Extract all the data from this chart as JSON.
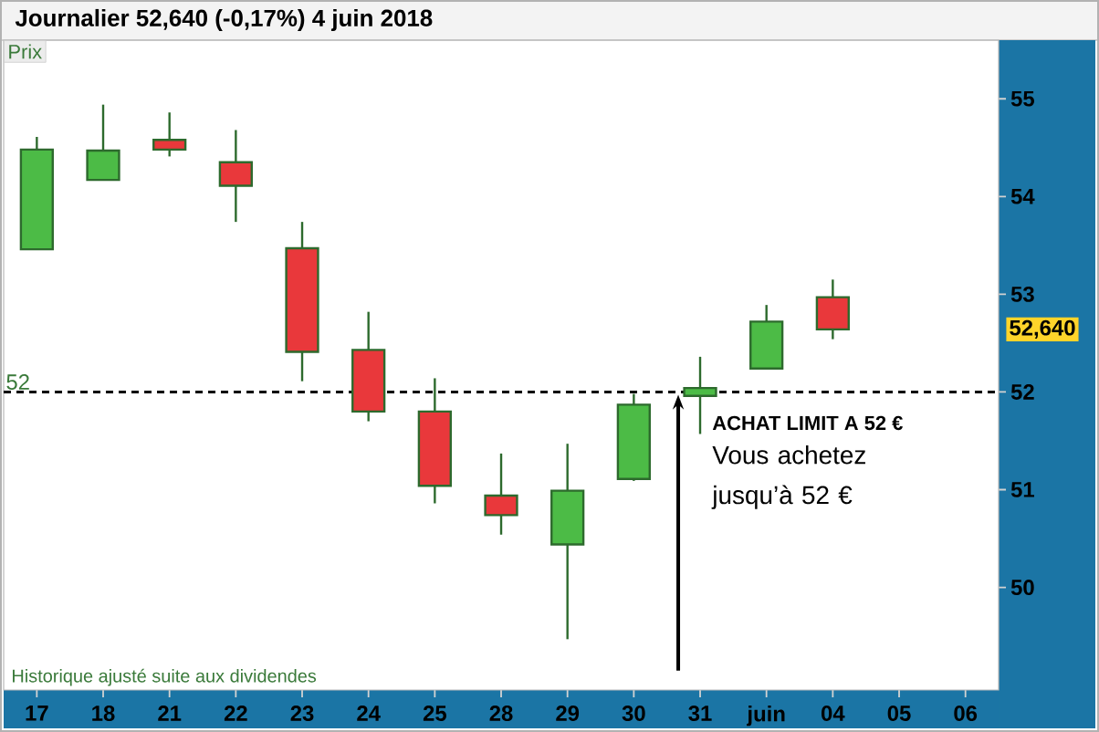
{
  "chart_data": {
    "type": "candlestick",
    "title": "Journalier 52,640 (-0,17%) 4 juin 2018",
    "ylabel": "Prix",
    "categories": [
      "17",
      "18",
      "21",
      "22",
      "23",
      "24",
      "25",
      "28",
      "29",
      "30",
      "31",
      "juin",
      "04",
      "05",
      "06"
    ],
    "ohlc": [
      [
        53.46,
        54.61,
        53.46,
        54.48
      ],
      [
        54.17,
        54.94,
        54.17,
        54.47
      ],
      [
        54.58,
        54.86,
        54.41,
        54.48
      ],
      [
        54.35,
        54.68,
        53.74,
        54.11
      ],
      [
        53.47,
        53.74,
        52.11,
        52.41
      ],
      [
        52.43,
        52.82,
        51.7,
        51.8
      ],
      [
        51.8,
        52.14,
        50.86,
        51.04
      ],
      [
        50.94,
        51.37,
        50.54,
        50.74
      ],
      [
        50.44,
        51.47,
        49.47,
        50.99
      ],
      [
        51.11,
        51.98,
        51.09,
        51.87
      ],
      [
        51.96,
        52.36,
        51.57,
        52.04
      ],
      [
        52.24,
        52.89,
        52.24,
        52.72
      ],
      [
        52.97,
        53.15,
        52.54,
        52.64
      ],
      null,
      null
    ],
    "colors": [
      "#4cbb46",
      "#4cbb46",
      "#e9383b",
      "#e9383b",
      "#e9383b",
      "#e9383b",
      "#e9383b",
      "#e9383b",
      "#4cbb46",
      "#4cbb46",
      "#4cbb46",
      "#4cbb46",
      "#e9383b",
      null,
      null
    ],
    "ylim": [
      48.95,
      55.6
    ],
    "yticks": [
      50,
      51,
      52,
      53,
      54,
      55
    ],
    "ref_lines": [
      {
        "axis": "y",
        "value": 52,
        "label": "52",
        "color": "#000000",
        "line_style": "dashed"
      }
    ],
    "annotations": [
      "52,640",
      {
        "text": "ACHAT LIMIT A 52 €",
        "x": "31",
        "y": 52
      },
      "Vous achetez jusqu’à 52 €",
      "Historique ajusté suite aux dividendes"
    ]
  }
}
